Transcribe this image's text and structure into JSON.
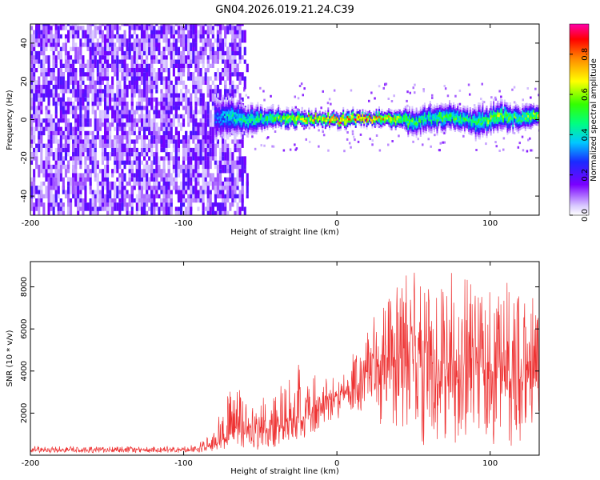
{
  "chart_data": [
    {
      "type": "heatmap",
      "title": "GN04.2026.019.21.24.C39",
      "xlabel": "Height of straight line (km)",
      "ylabel": "Frequency (Hz)",
      "xlim": [
        -200,
        132
      ],
      "ylim": [
        -50,
        50
      ],
      "x_ticks": [
        -200,
        -100,
        0,
        100
      ],
      "y_ticks": [
        -40,
        -20,
        0,
        20,
        40
      ],
      "colorbar": {
        "label": "Normalized spectral amplitude",
        "range": [
          0,
          0.95
        ],
        "ticks": [
          0.0,
          0.2,
          0.4,
          0.6,
          0.8
        ]
      },
      "noise_region": {
        "x_start": -200,
        "x_end": -65,
        "freq_spread": 50
      },
      "signal_track": {
        "x": [
          -80,
          -70,
          -60,
          -50,
          -40,
          -30,
          -20,
          -10,
          0,
          10,
          20,
          30,
          40,
          50,
          60,
          70,
          80,
          90,
          100,
          110,
          120,
          130
        ],
        "center_freq": [
          0,
          1,
          0,
          0,
          0,
          0,
          0,
          0,
          -1,
          0,
          0,
          0,
          0,
          -2,
          0,
          1,
          0,
          -2,
          0,
          1,
          0,
          1
        ],
        "spread": [
          12,
          10,
          8,
          6,
          5,
          5,
          4,
          4,
          4,
          4,
          4,
          4,
          5,
          7,
          8,
          7,
          6,
          8,
          8,
          7,
          6,
          6
        ],
        "peak_amplitude": [
          0.3,
          0.45,
          0.5,
          0.55,
          0.6,
          0.7,
          0.75,
          0.85,
          0.95,
          0.9,
          0.85,
          0.8,
          0.7,
          0.55,
          0.5,
          0.6,
          0.55,
          0.5,
          0.65,
          0.6,
          0.55,
          0.7
        ]
      }
    },
    {
      "type": "line",
      "xlabel": "Height of straight line (km)",
      "ylabel": "SNR (10 * v/v)",
      "xlim": [
        -200,
        132
      ],
      "ylim": [
        0,
        9200
      ],
      "x_ticks": [
        -200,
        -100,
        0,
        100
      ],
      "y_ticks": [
        2000,
        4000,
        6000,
        8000
      ],
      "series": [
        {
          "name": "SNR",
          "color": "#ee3333",
          "x": [
            -200,
            -180,
            -160,
            -140,
            -120,
            -100,
            -90,
            -80,
            -75,
            -70,
            -65,
            -60,
            -55,
            -50,
            -45,
            -40,
            -35,
            -30,
            -25,
            -20,
            -15,
            -10,
            -5,
            0,
            5,
            10,
            15,
            20,
            25,
            30,
            35,
            40,
            45,
            50,
            55,
            60,
            65,
            70,
            75,
            80,
            85,
            90,
            95,
            100,
            105,
            110,
            115,
            120,
            125,
            130
          ],
          "mean": [
            250,
            250,
            250,
            250,
            250,
            260,
            300,
            500,
            700,
            1000,
            1200,
            1000,
            1100,
            1200,
            1300,
            1400,
            1500,
            1700,
            1600,
            1800,
            2000,
            2300,
            2600,
            2800,
            3000,
            3000,
            3800,
            4000,
            4300,
            4500,
            4500,
            4500,
            4500,
            4400,
            4500,
            4500,
            4300,
            4200,
            4300,
            4400,
            4300,
            4200,
            4100,
            4000,
            3900,
            3900,
            3800,
            3700,
            3700,
            3800
          ],
          "max": [
            450,
            420,
            400,
            420,
            410,
            420,
            600,
            1100,
            2400,
            3000,
            3600,
            2400,
            2600,
            2800,
            3300,
            3000,
            3500,
            3800,
            4300,
            3500,
            4200,
            3700,
            3800,
            3600,
            4100,
            5000,
            5400,
            6300,
            6800,
            7000,
            7800,
            8200,
            8600,
            9000,
            8300,
            8400,
            8000,
            8200,
            8800,
            8000,
            8500,
            8200,
            7800,
            8200,
            9100,
            8300,
            8500,
            8000,
            7200,
            8000
          ],
          "min": [
            120,
            120,
            120,
            120,
            120,
            120,
            140,
            150,
            200,
            250,
            300,
            200,
            200,
            300,
            300,
            400,
            500,
            600,
            600,
            700,
            1000,
            1200,
            1500,
            1700,
            1900,
            2000,
            2100,
            2000,
            1500,
            900,
            600,
            400,
            500,
            400,
            500,
            400,
            600,
            400,
            500,
            600,
            500,
            400,
            600,
            400,
            300,
            500,
            400,
            300,
            1000,
            2000
          ]
        }
      ]
    }
  ]
}
